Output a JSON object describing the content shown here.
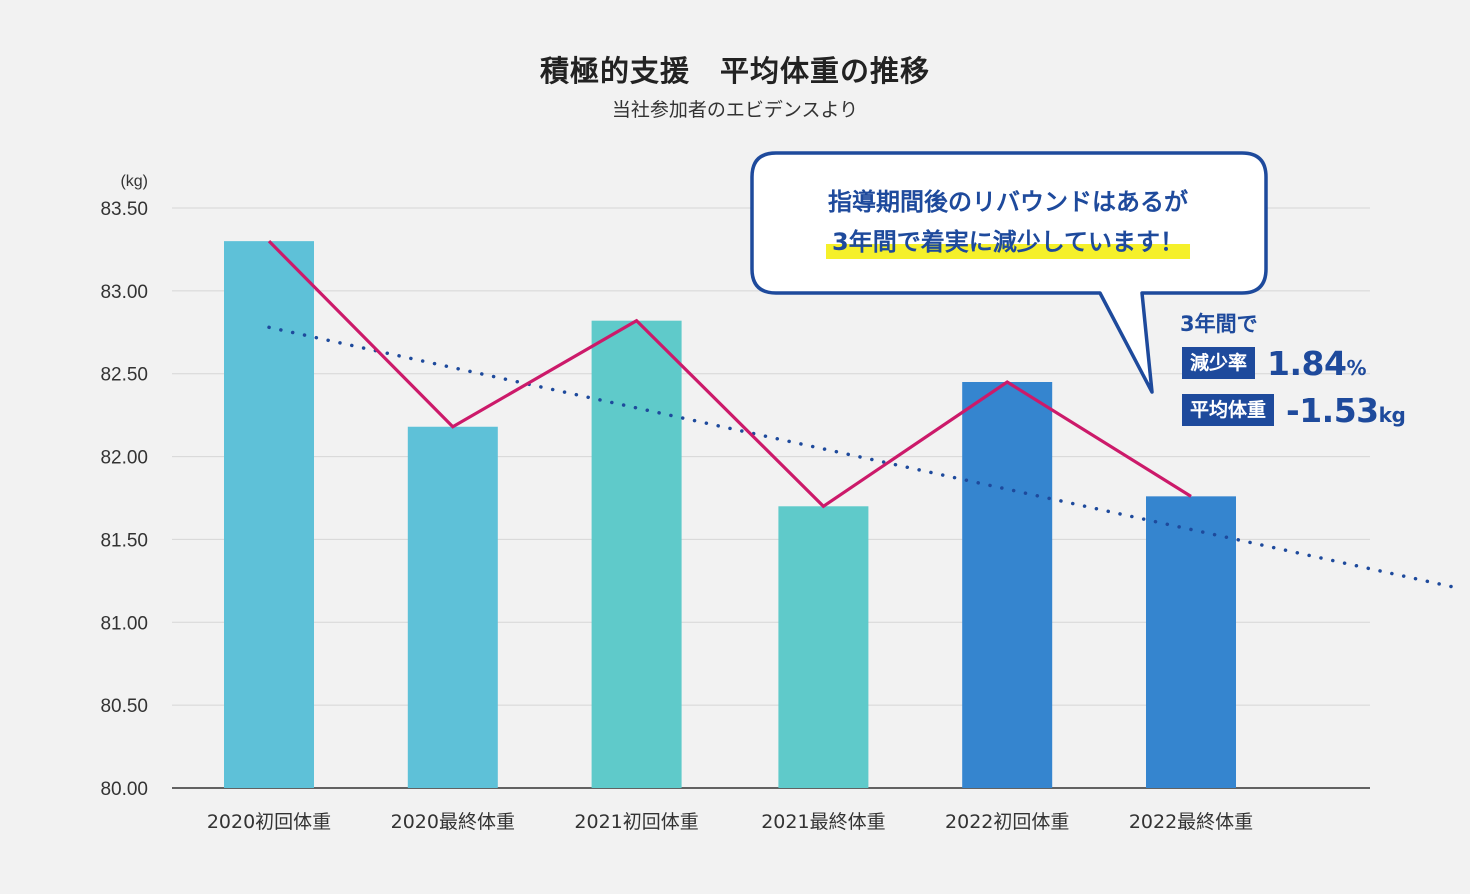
{
  "chart_data": {
    "type": "bar",
    "title": "積極的支援　平均体重の推移",
    "subtitle": "当社参加者のエビデンスより",
    "unit_label": "(kg)",
    "categories": [
      "2020初回体重",
      "2020最終体重",
      "2021初回体重",
      "2021最終体重",
      "2022初回体重",
      "2022最終体重"
    ],
    "values": [
      83.3,
      82.18,
      82.82,
      81.7,
      82.45,
      81.76
    ],
    "ylim": [
      80.0,
      83.5
    ],
    "yticks": [
      "80.00",
      "80.50",
      "81.00",
      "81.50",
      "82.00",
      "82.50",
      "83.00",
      "83.50"
    ],
    "bar_colors": [
      "#5ec1d8",
      "#5ec1d8",
      "#5fcaca",
      "#5fcaca",
      "#3585cf",
      "#3585cf"
    ],
    "line_color": "#cc1a6a",
    "trend_color": "#1e4a9c",
    "trendline": {
      "start": 82.78,
      "end": 81.56
    },
    "grid": true,
    "legend": "none"
  },
  "callout": {
    "line1": "指導期間後のリバウンドはあるが",
    "line2": "3年間で着実に減少しています！"
  },
  "summary": {
    "heading": "3年間で",
    "rows": [
      {
        "label": "減少率",
        "value": "1.84",
        "unit": "%"
      },
      {
        "label": "平均体重",
        "value": "-1.53",
        "unit": "kg"
      }
    ]
  }
}
